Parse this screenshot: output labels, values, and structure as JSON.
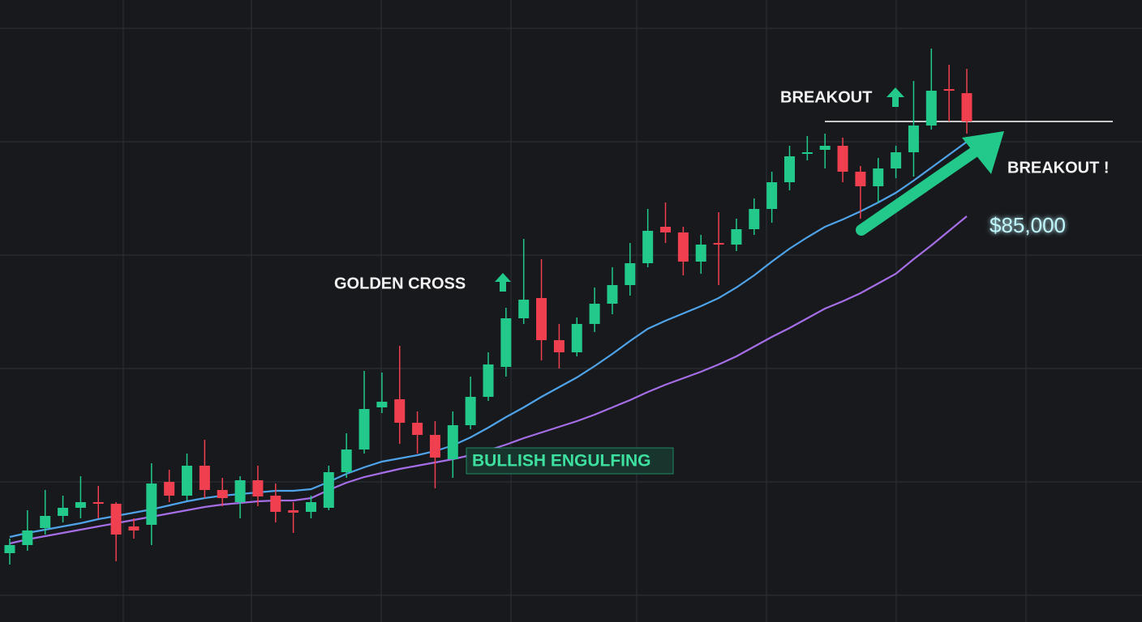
{
  "chart_data": {
    "type": "candlestick",
    "up_color": "#22c98a",
    "down_color": "#f0404f",
    "ylim": [
      60600,
      99000
    ],
    "open": [
      64850,
      65350,
      66400,
      67150,
      67650,
      68000,
      67900,
      66500,
      66600,
      69250,
      68400,
      70250,
      68750,
      68000,
      69350,
      68400,
      67500,
      67400,
      67650,
      69850,
      71250,
      73850,
      74350,
      72900,
      72150,
      70650,
      72750,
      74500,
      76350,
      79350,
      80600,
      78000,
      77250,
      79000,
      80250,
      81400,
      82750,
      85000,
      84650,
      82850,
      84000,
      83900,
      84850,
      86100,
      87750,
      89500,
      89750,
      90000,
      88400,
      87500,
      88600,
      89600,
      91250,
      93500,
      93250
    ],
    "high": [
      65750,
      67500,
      68750,
      68400,
      69600,
      69000,
      68000,
      67000,
      70400,
      70000,
      71000,
      71850,
      69500,
      69600,
      70250,
      69150,
      68000,
      68400,
      70250,
      72250,
      76100,
      76000,
      77650,
      73600,
      73000,
      73600,
      75750,
      77250,
      80000,
      84250,
      83000,
      79000,
      79400,
      81250,
      82500,
      84000,
      86100,
      86500,
      85000,
      84500,
      85900,
      85500,
      86750,
      88400,
      90000,
      90600,
      90750,
      90500,
      88750,
      89250,
      90000,
      94000,
      96000,
      95000,
      94750
    ],
    "low": [
      64150,
      65000,
      66000,
      66750,
      67000,
      67000,
      64350,
      65750,
      65350,
      68000,
      68100,
      68250,
      67750,
      67000,
      67750,
      66750,
      66100,
      67000,
      67500,
      69500,
      71000,
      73500,
      71600,
      71000,
      68850,
      69500,
      72500,
      74250,
      75750,
      79000,
      76750,
      76250,
      77000,
      78500,
      79600,
      80750,
      82500,
      84000,
      82000,
      82100,
      81400,
      83500,
      84500,
      85250,
      87250,
      89100,
      88600,
      87750,
      85500,
      86500,
      88000,
      88100,
      91000,
      91500,
      90750
    ],
    "close": [
      65350,
      66250,
      67150,
      67650,
      68000,
      67900,
      66000,
      66250,
      69150,
      68400,
      70250,
      68750,
      68250,
      69350,
      68350,
      67400,
      67350,
      68000,
      69850,
      71250,
      73750,
      74200,
      72900,
      72150,
      70750,
      72750,
      74500,
      76500,
      79350,
      80500,
      78000,
      77250,
      79000,
      80250,
      81400,
      82750,
      84750,
      84650,
      82850,
      83900,
      83900,
      84850,
      86100,
      87750,
      89350,
      89600,
      90000,
      88400,
      87500,
      88600,
      89600,
      91250,
      93400,
      93400,
      91500
    ],
    "moving_averages": [
      {
        "color": "#4fa3e8",
        "values": [
          65850,
          66100,
          66300,
          66500,
          66700,
          66950,
          67150,
          67350,
          67550,
          67800,
          68050,
          68250,
          68400,
          68500,
          68600,
          68700,
          68700,
          68800,
          69250,
          69750,
          70150,
          70500,
          70700,
          70900,
          71150,
          71500,
          72000,
          72600,
          73250,
          73850,
          74500,
          75100,
          75700,
          76400,
          77150,
          77950,
          78700,
          79200,
          79650,
          80100,
          80600,
          81250,
          82000,
          82850,
          83650,
          84350,
          85000,
          85450,
          85950,
          86500,
          87100,
          87850,
          88650,
          89450,
          90250
        ]
      },
      {
        "color": "#a66ee6",
        "values": [
          65450,
          65700,
          65900,
          66100,
          66300,
          66500,
          66700,
          66900,
          67100,
          67300,
          67500,
          67700,
          67850,
          67950,
          68050,
          68100,
          68100,
          68250,
          68750,
          69200,
          69550,
          69800,
          70050,
          70250,
          70450,
          70650,
          70900,
          71200,
          71550,
          71950,
          72300,
          72650,
          73000,
          73400,
          73850,
          74300,
          74800,
          75250,
          75650,
          76050,
          76500,
          77000,
          77600,
          78200,
          78750,
          79350,
          79950,
          80400,
          80900,
          81500,
          82100,
          83000,
          83850,
          84750,
          85650
        ]
      }
    ],
    "support_level": {
      "value": 85000,
      "label": "$85,000"
    },
    "support_color": "#18c6d6",
    "resistance_level": 91500,
    "annotations": [
      "GOLDEN CROSS",
      "BULLISH ENGULFING",
      "BREAKOUT",
      "BREAKOUT !"
    ]
  }
}
